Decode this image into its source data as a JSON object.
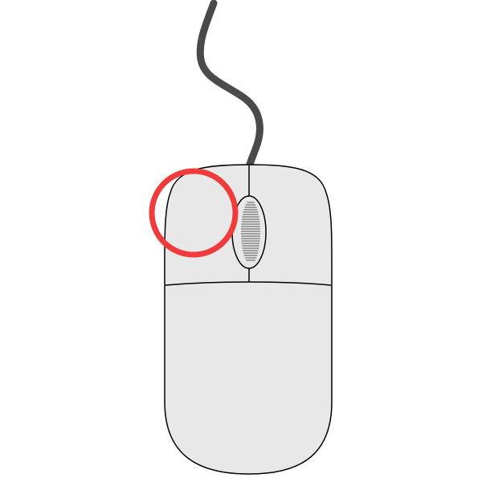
{
  "colors": {
    "background": "#ffffff",
    "cable": "#4a4a4a",
    "mouse_body": "#e8e8e8",
    "mouse_outline": "#000000",
    "wheel_grooves": "#555555",
    "highlight_ring": "#ef3b3b"
  },
  "icons": {
    "device": "computer-mouse-icon",
    "cable": "mouse-cable-icon",
    "highlight": "highlight-circle-icon"
  },
  "highlight": {
    "target": "left-mouse-button"
  }
}
